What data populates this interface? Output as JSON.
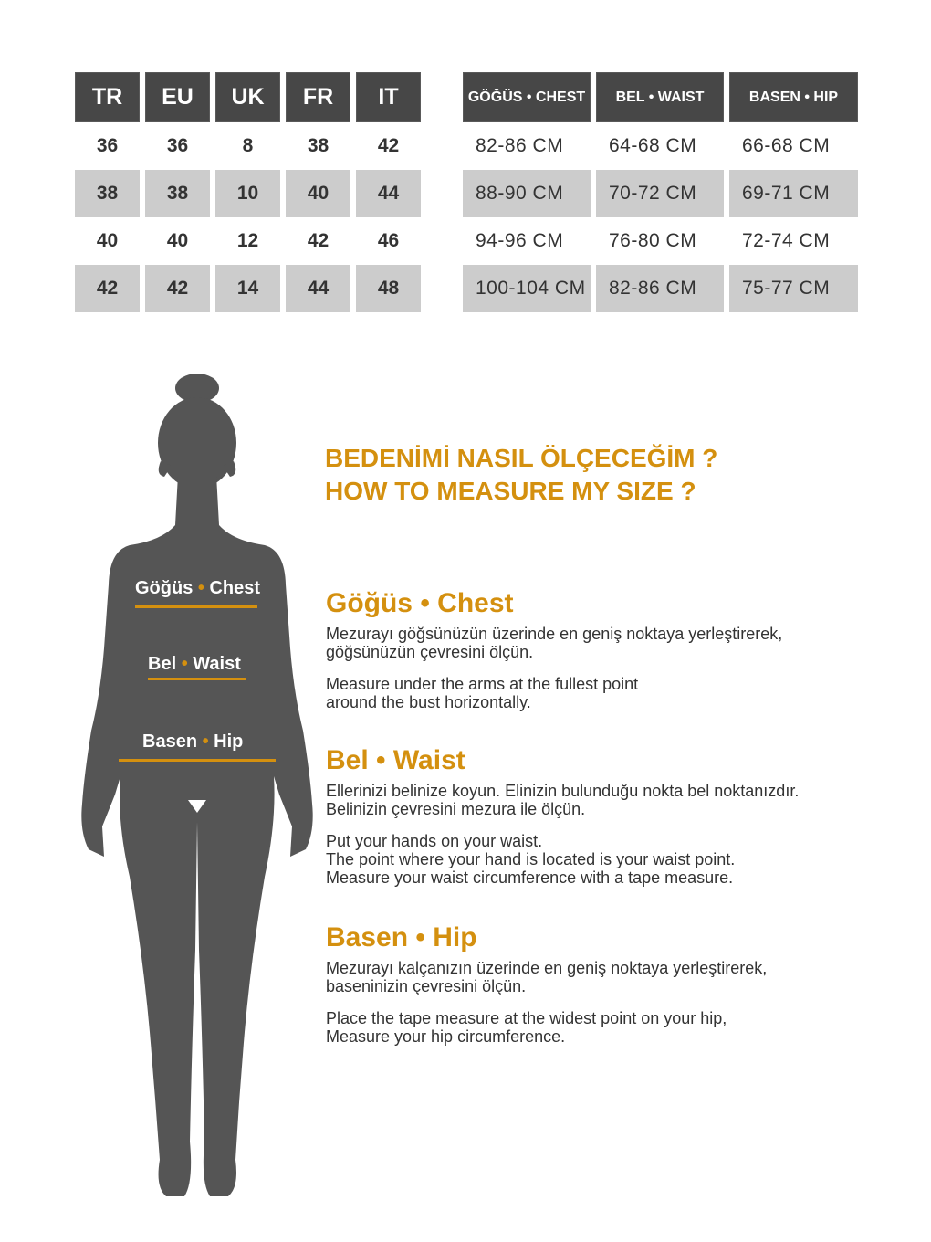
{
  "size_table": {
    "headers": [
      "TR",
      "EU",
      "UK",
      "FR",
      "IT"
    ],
    "rows": [
      [
        "36",
        "36",
        "8",
        "38",
        "42"
      ],
      [
        "38",
        "38",
        "10",
        "40",
        "44"
      ],
      [
        "40",
        "40",
        "12",
        "42",
        "46"
      ],
      [
        "42",
        "42",
        "14",
        "44",
        "48"
      ]
    ]
  },
  "measure_table": {
    "headers": [
      "GÖĞÜS • CHEST",
      "BEL • WAIST",
      "BASEN • HIP"
    ],
    "rows": [
      [
        "82-86 CM",
        "64-68 CM",
        "66-68 CM"
      ],
      [
        "88-90 CM",
        "70-72 CM",
        "69-71 CM"
      ],
      [
        "94-96 CM",
        "76-80 CM",
        "72-74 CM"
      ],
      [
        "100-104 CM",
        "82-86 CM",
        "75-77 CM"
      ]
    ]
  },
  "title": {
    "line1": "BEDENİMİ NASIL ÖLÇECEĞİM ?",
    "line2": "HOW TO MEASURE MY SIZE ?"
  },
  "figure_labels": {
    "chest_tr": "Göğüs",
    "chest_en": "Chest",
    "waist_tr": "Bel",
    "waist_en": "Waist",
    "hip_tr": "Basen",
    "hip_en": "Hip",
    "dot": "•"
  },
  "sections": [
    {
      "heading": "Göğüs • Chest",
      "tr": "Mezurayı göğsünüzün üzerinde en geniş noktaya yerleştirerek,\ngöğsünüzün çevresini ölçün.",
      "en": "Measure under the arms at the fullest point\naround the bust horizontally."
    },
    {
      "heading": "Bel • Waist",
      "tr": "Ellerinizi belinize koyun. Elinizin bulunduğu nokta bel noktanızdır.\nBelinizin çevresini mezura ile ölçün.",
      "en": "Put your hands on your waist.\nThe point where your hand is located is your waist point.\nMeasure your waist circumference with a tape measure."
    },
    {
      "heading": "Basen • Hip",
      "tr": "Mezurayı kalçanızın üzerinde en geniş noktaya yerleştirerek,\nbaseninizin çevresini ölçün.",
      "en": "Place the tape measure at the widest point on your hip,\nMeasure your hip circumference."
    }
  ],
  "colors": {
    "accent": "#d4900f",
    "header_bg": "#474747",
    "row_alt": "#cccccc",
    "silhouette": "#555555"
  }
}
